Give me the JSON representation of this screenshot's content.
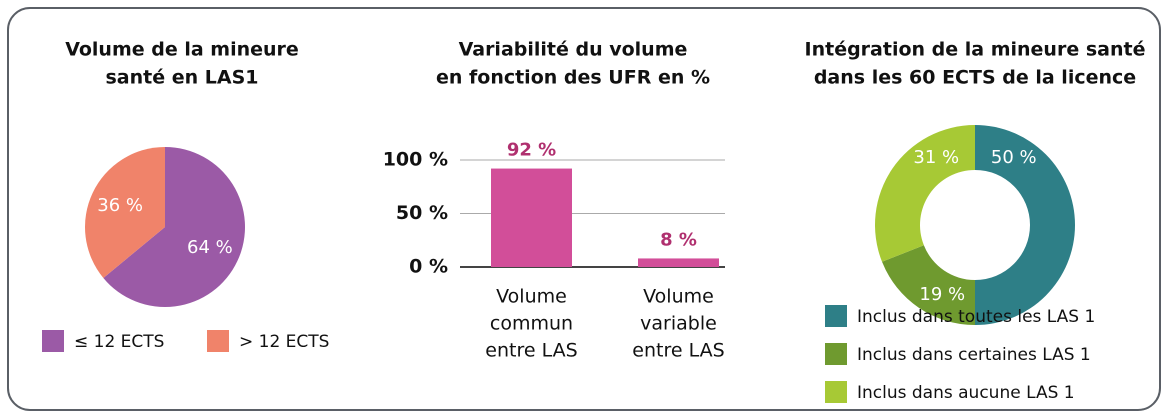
{
  "chart_data": [
    {
      "type": "pie",
      "title": [
        "Volume de la mineure",
        "santé en LAS1"
      ],
      "categories": [
        "≤ 12 ECTS",
        "> 12 ECTS"
      ],
      "values": [
        64,
        36
      ],
      "value_labels": [
        "64 %",
        "36 %"
      ],
      "colors": [
        "#9b5aa6",
        "#f0836a"
      ]
    },
    {
      "type": "bar",
      "title": [
        "Variabilité du volume",
        "en fonction des UFR en %"
      ],
      "categories": [
        [
          "Volume",
          "commun",
          "entre LAS"
        ],
        [
          "Volume",
          "variable",
          "entre LAS"
        ]
      ],
      "values": [
        92,
        8
      ],
      "value_labels": [
        "92 %",
        "8 %"
      ],
      "color": "#d24e99",
      "ylim": [
        0,
        100
      ],
      "yticks": [
        {
          "value": 0,
          "label": "0 %"
        },
        {
          "value": 50,
          "label": "50 %"
        },
        {
          "value": 100,
          "label": "100 %"
        }
      ],
      "grid": true
    },
    {
      "type": "donut",
      "title": [
        "Intégration de la mineure santé",
        "dans les 60 ECTS de la licence"
      ],
      "categories": [
        "Inclus dans toutes les LAS 1",
        "Inclus dans certaines LAS 1",
        "Inclus dans aucune LAS 1"
      ],
      "values": [
        50,
        19,
        31
      ],
      "value_labels": [
        "50 %",
        "19 %",
        "31 %"
      ],
      "colors": [
        "#2e7f87",
        "#6f9a2f",
        "#a7c935"
      ]
    }
  ]
}
